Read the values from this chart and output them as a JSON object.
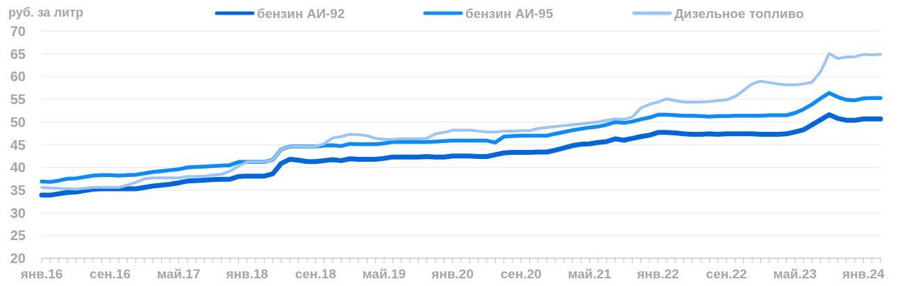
{
  "chart_data": {
    "type": "line",
    "ylabel": "руб. за литр",
    "categories": [
      "янв.16",
      null,
      null,
      null,
      null,
      null,
      null,
      null,
      "сен.16",
      null,
      null,
      null,
      null,
      null,
      null,
      null,
      "май.17",
      null,
      null,
      null,
      null,
      null,
      null,
      null,
      "янв.18",
      null,
      null,
      null,
      null,
      null,
      null,
      null,
      "сен.18",
      null,
      null,
      null,
      null,
      null,
      null,
      null,
      "май.19",
      null,
      null,
      null,
      null,
      null,
      null,
      null,
      "янв.20",
      null,
      null,
      null,
      null,
      null,
      null,
      null,
      "сен.20",
      null,
      null,
      null,
      null,
      null,
      null,
      null,
      "май.21",
      null,
      null,
      null,
      null,
      null,
      null,
      null,
      "янв.22",
      null,
      null,
      null,
      null,
      null,
      null,
      null,
      "сен.22",
      null,
      null,
      null,
      null,
      null,
      null,
      null,
      "май.23",
      null,
      null,
      null,
      null,
      null,
      null,
      null,
      "янв.24",
      null,
      null
    ],
    "series": [
      {
        "name": "бензин АИ-92",
        "color": "#0066dd",
        "values": [
          33.9,
          33.9,
          34.2,
          34.5,
          34.6,
          34.9,
          35.2,
          35.3,
          35.3,
          35.3,
          35.3,
          35.3,
          35.6,
          35.9,
          36.1,
          36.3,
          36.6,
          37.0,
          37.1,
          37.2,
          37.3,
          37.4,
          37.4,
          38.0,
          38.1,
          38.1,
          38.1,
          38.6,
          40.9,
          41.8,
          41.6,
          41.3,
          41.3,
          41.5,
          41.7,
          41.5,
          41.9,
          41.8,
          41.8,
          41.8,
          42.0,
          42.3,
          42.3,
          42.3,
          42.3,
          42.4,
          42.3,
          42.3,
          42.5,
          42.5,
          42.5,
          42.4,
          42.4,
          42.8,
          43.2,
          43.3,
          43.3,
          43.3,
          43.4,
          43.4,
          43.8,
          44.3,
          44.8,
          45.1,
          45.2,
          45.5,
          45.7,
          46.3,
          46.0,
          46.4,
          46.8,
          47.1,
          47.7,
          47.7,
          47.6,
          47.4,
          47.3,
          47.3,
          47.4,
          47.3,
          47.4,
          47.4,
          47.4,
          47.4,
          47.3,
          47.3,
          47.3,
          47.4,
          47.8,
          48.3,
          49.4,
          50.5,
          51.6,
          50.8,
          50.4,
          50.4,
          50.7,
          50.7,
          50.7
        ]
      },
      {
        "name": "бензин АИ-95",
        "color": "#0a8cff",
        "values": [
          36.9,
          36.8,
          37.1,
          37.5,
          37.6,
          37.9,
          38.2,
          38.3,
          38.3,
          38.2,
          38.3,
          38.4,
          38.7,
          39.0,
          39.2,
          39.4,
          39.6,
          40.0,
          40.1,
          40.2,
          40.3,
          40.4,
          40.5,
          41.2,
          41.2,
          41.2,
          41.2,
          41.7,
          44.0,
          44.6,
          44.6,
          44.6,
          44.6,
          44.8,
          44.9,
          44.7,
          45.2,
          45.1,
          45.1,
          45.1,
          45.3,
          45.6,
          45.6,
          45.6,
          45.6,
          45.6,
          45.7,
          45.8,
          45.9,
          45.9,
          45.9,
          45.9,
          45.9,
          45.5,
          46.8,
          46.9,
          47.0,
          47.0,
          47.0,
          47.0,
          47.4,
          47.8,
          48.2,
          48.5,
          48.8,
          49.0,
          49.4,
          50.0,
          49.8,
          50.1,
          50.6,
          51.0,
          51.6,
          51.6,
          51.5,
          51.4,
          51.4,
          51.3,
          51.2,
          51.3,
          51.3,
          51.4,
          51.4,
          51.4,
          51.4,
          51.5,
          51.5,
          51.5,
          52.0,
          52.8,
          53.9,
          55.2,
          56.4,
          55.5,
          54.9,
          54.8,
          55.2,
          55.3,
          55.3
        ]
      },
      {
        "name": "Дизельное топливо",
        "color": "#99c4fa",
        "values": [
          35.6,
          35.5,
          35.4,
          35.3,
          35.2,
          35.4,
          35.6,
          35.6,
          35.6,
          35.6,
          36.1,
          36.7,
          37.5,
          37.7,
          37.7,
          37.7,
          37.7,
          38.0,
          38.0,
          38.1,
          38.3,
          38.5,
          39.2,
          40.3,
          41.2,
          41.2,
          41.2,
          41.7,
          44.0,
          44.6,
          44.6,
          44.6,
          44.6,
          45.2,
          46.5,
          46.8,
          47.3,
          47.2,
          47.0,
          46.4,
          46.2,
          46.2,
          46.3,
          46.3,
          46.3,
          46.4,
          47.4,
          47.7,
          48.2,
          48.2,
          48.2,
          48.0,
          47.8,
          47.8,
          48.0,
          48.0,
          48.1,
          48.1,
          48.6,
          48.8,
          49.0,
          49.2,
          49.4,
          49.6,
          49.8,
          50.0,
          50.4,
          50.7,
          50.6,
          51.1,
          53.1,
          53.9,
          54.4,
          55.1,
          54.7,
          54.4,
          54.4,
          54.4,
          54.5,
          54.7,
          54.9,
          55.6,
          57.0,
          58.4,
          59.0,
          58.7,
          58.4,
          58.2,
          58.2,
          58.4,
          58.8,
          61.1,
          65.1,
          64.0,
          64.3,
          64.4,
          64.9,
          64.8,
          64.9
        ]
      }
    ],
    "ylim": [
      20,
      70
    ],
    "yticks": [
      20,
      25,
      30,
      35,
      40,
      45,
      50,
      55,
      60,
      65,
      70
    ],
    "grid": "y",
    "legend": "top",
    "marker": "none",
    "line_style": "solid"
  }
}
